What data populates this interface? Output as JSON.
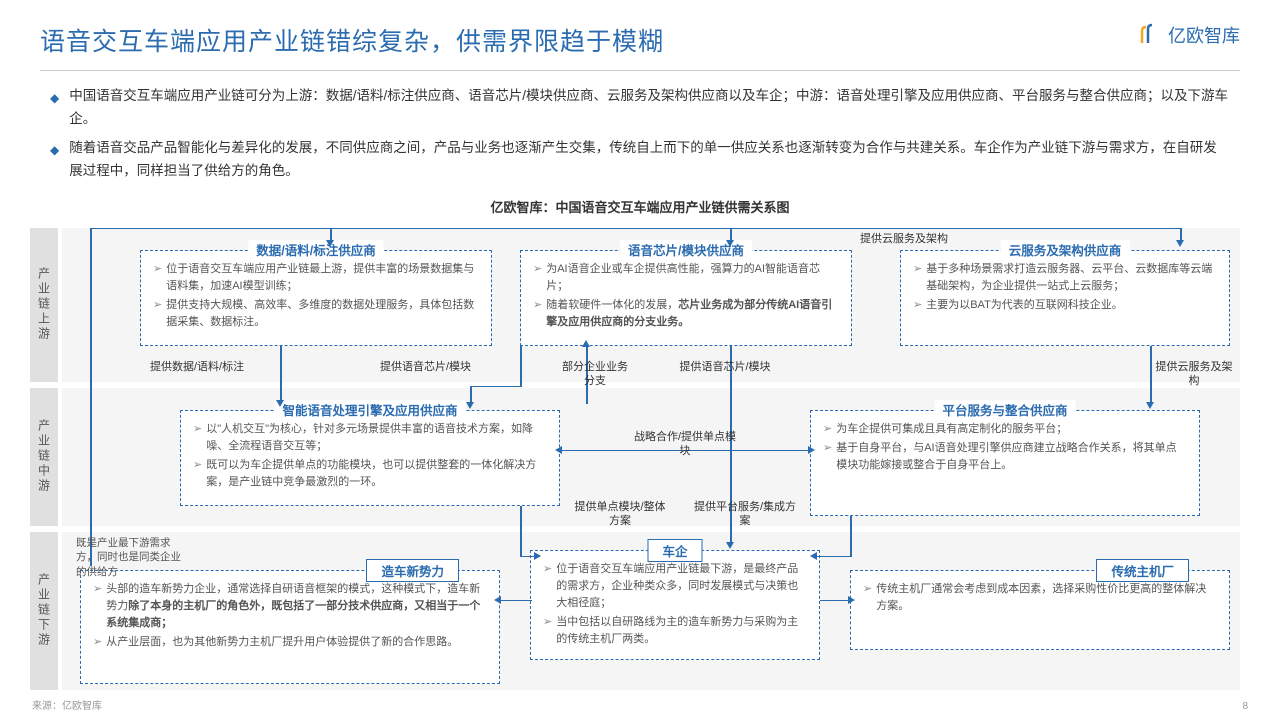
{
  "title": "语音交互车端应用产业链错综复杂，供需界限趋于模糊",
  "logo_text": "亿欧智库",
  "bullets": [
    "中国语音交互车端应用产业链可分为上游：数据/语料/标注供应商、语音芯片/模块供应商、云服务及架构供应商以及车企；中游：语音处理引擎及应用供应商、平台服务与整合供应商；以及下游车企。",
    "随着语音交品产品智能化与差异化的发展，不同供应商之间，产品与业务也逐渐产生交集，传统自上而下的单一供应关系也逐渐转变为合作与共建关系。车企作为产业链下游与需求方，在自研发展过程中，同样担当了供给方的角色。"
  ],
  "chart_title": "亿欧智库：中国语音交互车端应用产业链供需关系图",
  "tiers": {
    "upstream": "产业链上游",
    "midstream": "产业链中游",
    "downstream": "产业链下游"
  },
  "boxes": {
    "data_supplier": {
      "title": "数据/语料/标注供应商",
      "items": [
        "位于语音交互车端应用产业链最上游，提供丰富的场景数据集与语料集，加速AI模型训练；",
        "提供支持大规模、高效率、多维度的数据处理服务，具体包括数据采集、数据标注。"
      ]
    },
    "chip_supplier": {
      "title": "语音芯片/模块供应商",
      "items": [
        "为AI语音企业或车企提供高性能，强算力的AI智能语音芯片；",
        "随着软硬件一体化的发展，<b>芯片业务成为部分传统AI语音引擎及应用供应商的分支业务。</b>"
      ]
    },
    "cloud_supplier": {
      "title": "云服务及架构供应商",
      "items": [
        "基于多种场景需求打造云服务器、云平台、云数据库等云端基础架构，为企业提供一站式上云服务；",
        "主要为以BAT为代表的互联网科技企业。"
      ]
    },
    "engine_supplier": {
      "title": "智能语音处理引擎及应用供应商",
      "items": [
        "以\"人机交互\"为核心，针对多元场景提供丰富的语音技术方案，如降噪、全流程语音交互等；",
        "既可以为车企提供单点的功能模块，也可以提供整套的一体化解决方案，是产业链中竞争最激烈的一环。"
      ]
    },
    "platform_supplier": {
      "title": "平台服务与整合供应商",
      "items": [
        "为车企提供可集成且具有高定制化的服务平台；",
        "基于自身平台，与AI语音处理引擎供应商建立战略合作关系，将其单点模块功能嫁接或整合于自身平台上。"
      ]
    },
    "oem": {
      "title": "车企",
      "items": [
        "位于语音交互车端应用产业链最下游，是最终产品的需求方，企业种类众多，同时发展模式与决策也大相径庭；",
        "当中包括以自研路线为主的造车新势力与采购为主的传统主机厂两类。"
      ]
    },
    "new_oem": {
      "title": "造车新势力",
      "items": [
        "头部的造车新势力企业，通常选择自研语音框架的模式，这种模式下，造车新势力<b>除了本身的主机厂的角色外，既包括了一部分技术供应商，又相当于一个系统集成商；</b>",
        "从产业层面，也为其他新势力主机厂提升用户体验提供了新的合作思路。"
      ]
    },
    "trad_oem": {
      "title": "传统主机厂",
      "items": [
        "传统主机厂通常会考虑到成本因素，选择采购性价比更高的整体解决方案。"
      ]
    }
  },
  "edges": {
    "e1": "提供数据/语料/标注",
    "e2": "提供语音芯片/模块",
    "e3": "部分企业业务分支",
    "e4": "提供语音芯片/模块",
    "e5": "提供云服务及架构",
    "e6": "提供云服务及架构",
    "e7": "战略合作/提供单点模块",
    "e8": "提供单点模块/整体方案",
    "e9": "提供平台服务/集成方案"
  },
  "note": "既是产业最下游需求方，同时也是同类企业的供给方",
  "footer_source": "来源：亿欧智库",
  "page_num": "8",
  "colors": {
    "primary": "#2b6cb0",
    "tier_bg": "#f5f5f5",
    "tier_label": "#e0e0e0"
  }
}
